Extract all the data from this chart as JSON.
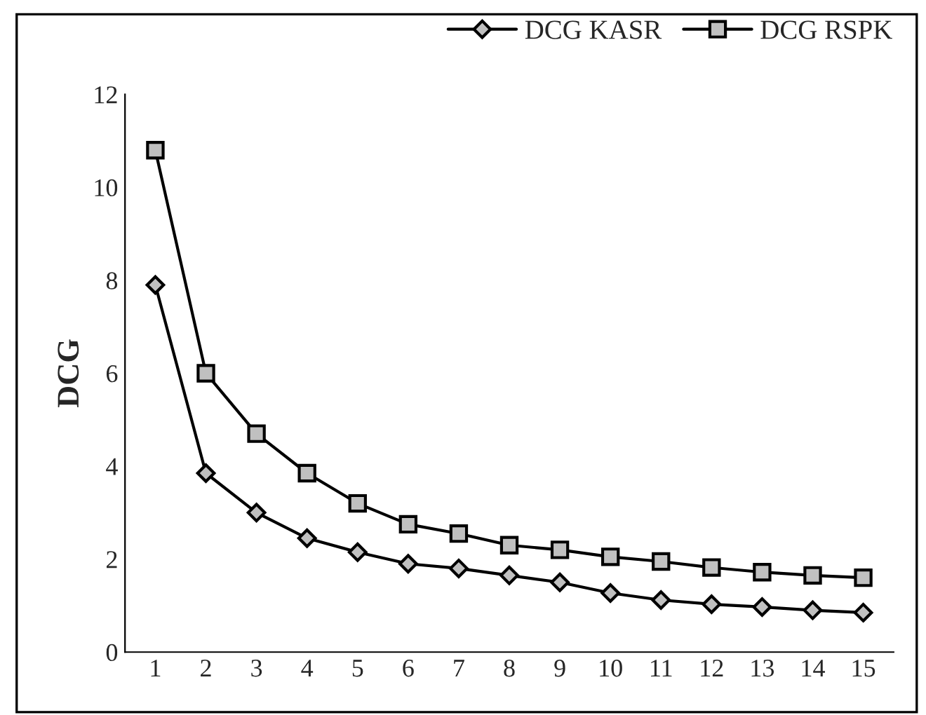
{
  "chart_data": {
    "type": "line",
    "ylabel": "DCG",
    "categories": [
      "1",
      "2",
      "3",
      "4",
      "5",
      "6",
      "7",
      "8",
      "9",
      "10",
      "11",
      "12",
      "13",
      "14",
      "15"
    ],
    "series": [
      {
        "name": "DCG KASR",
        "color": "#000000",
        "marker": "diamond",
        "values": [
          7.9,
          3.85,
          3.0,
          2.45,
          2.15,
          1.9,
          1.8,
          1.65,
          1.5,
          1.27,
          1.12,
          1.03,
          0.97,
          0.9,
          0.85
        ]
      },
      {
        "name": "DCG RSPK",
        "color": "#000000",
        "marker": "square",
        "values": [
          10.8,
          6.0,
          4.7,
          3.85,
          3.2,
          2.75,
          2.55,
          2.3,
          2.2,
          2.05,
          1.95,
          1.82,
          1.72,
          1.65,
          1.6
        ]
      }
    ],
    "ylim": [
      0,
      12
    ],
    "yticks": [
      0,
      2,
      4,
      6,
      8,
      10,
      12
    ],
    "grid": false,
    "legend": "top right"
  }
}
